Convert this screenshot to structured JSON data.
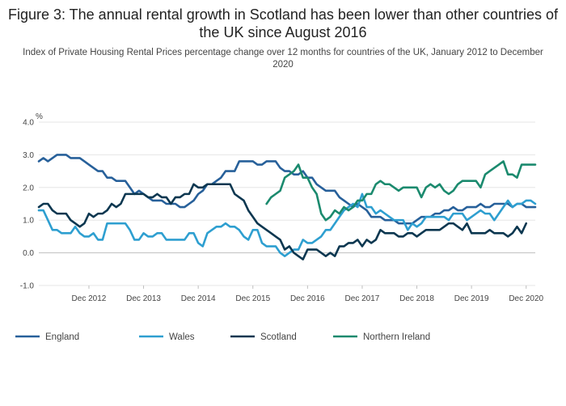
{
  "title": "Figure 3: The annual rental growth in Scotland has been lower than other countries of the UK since August 2016",
  "subtitle": "Index of Private Housing Rental Prices percentage change over 12 months for countries of the UK, January 2012 to December 2020",
  "chart_data": {
    "type": "line",
    "title": "Figure 3: The annual rental growth in Scotland has been lower than other countries of the UK since August 2016",
    "subtitle": "Index of Private Housing Rental Prices percentage change over 12 months for countries of the UK, January 2012 to December 2020",
    "ylabel": "%",
    "xlabel": "",
    "x_start": "Jan 2012",
    "x_end": "Dec 2020",
    "ylim": [
      -1.0,
      4.0
    ],
    "yticks": [
      -1.0,
      0.0,
      1.0,
      2.0,
      3.0,
      4.0
    ],
    "ytick_labels": [
      "-1.0",
      "0.0",
      "1.0",
      "2.0",
      "3.0",
      "4.0"
    ],
    "xtick_labels": [
      "Dec 2012",
      "Dec 2013",
      "Dec 2014",
      "Dec 2015",
      "Dec 2016",
      "Dec 2017",
      "Dec 2018",
      "Dec 2019",
      "Dec 2020"
    ],
    "grid": true,
    "legend": "bottom",
    "series": [
      {
        "name": "England",
        "color": "#27609a",
        "values": [
          2.8,
          2.9,
          2.8,
          2.9,
          3.0,
          3.0,
          3.0,
          2.9,
          2.9,
          2.9,
          2.8,
          2.7,
          2.6,
          2.5,
          2.5,
          2.3,
          2.3,
          2.2,
          2.2,
          2.2,
          2.0,
          1.8,
          1.9,
          1.8,
          1.7,
          1.6,
          1.6,
          1.6,
          1.5,
          1.5,
          1.5,
          1.4,
          1.4,
          1.5,
          1.6,
          1.8,
          1.9,
          2.1,
          2.1,
          2.2,
          2.3,
          2.5,
          2.5,
          2.5,
          2.8,
          2.8,
          2.8,
          2.8,
          2.7,
          2.7,
          2.8,
          2.8,
          2.8,
          2.6,
          2.5,
          2.5,
          2.4,
          2.4,
          2.5,
          2.3,
          2.3,
          2.1,
          2.0,
          1.9,
          1.9,
          1.9,
          1.7,
          1.6,
          1.5,
          1.4,
          1.5,
          1.4,
          1.3,
          1.1,
          1.1,
          1.1,
          1.0,
          1.0,
          1.0,
          0.9,
          0.9,
          0.9,
          0.9,
          1.0,
          1.1,
          1.1,
          1.1,
          1.2,
          1.2,
          1.3,
          1.3,
          1.4,
          1.3,
          1.3,
          1.4,
          1.4,
          1.4,
          1.5,
          1.4,
          1.4,
          1.5,
          1.5,
          1.5,
          1.5,
          1.4,
          1.5,
          1.5,
          1.4,
          1.4,
          1.4
        ]
      },
      {
        "name": "Wales",
        "color": "#2e9fd0",
        "values": [
          1.3,
          1.3,
          1.0,
          0.7,
          0.7,
          0.6,
          0.6,
          0.6,
          0.8,
          0.6,
          0.5,
          0.5,
          0.6,
          0.4,
          0.4,
          0.9,
          0.9,
          0.9,
          0.9,
          0.9,
          0.7,
          0.4,
          0.4,
          0.6,
          0.5,
          0.5,
          0.6,
          0.6,
          0.4,
          0.4,
          0.4,
          0.4,
          0.4,
          0.6,
          0.6,
          0.3,
          0.2,
          0.6,
          0.7,
          0.8,
          0.8,
          0.9,
          0.8,
          0.8,
          0.7,
          0.5,
          0.4,
          0.7,
          0.7,
          0.3,
          0.2,
          0.2,
          0.2,
          0.0,
          -0.1,
          0.0,
          0.1,
          0.1,
          0.4,
          0.3,
          0.3,
          0.4,
          0.5,
          0.7,
          0.7,
          0.9,
          1.1,
          1.3,
          1.4,
          1.5,
          1.4,
          1.8,
          1.4,
          1.4,
          1.2,
          1.3,
          1.2,
          1.1,
          1.0,
          1.0,
          1.0,
          0.7,
          0.9,
          0.8,
          0.9,
          1.1,
          1.1,
          1.1,
          1.1,
          1.1,
          1.0,
          1.2,
          1.2,
          1.2,
          1.0,
          1.1,
          1.2,
          1.3,
          1.2,
          1.2,
          1.0,
          1.2,
          1.4,
          1.6,
          1.4,
          1.5,
          1.5,
          1.6,
          1.6,
          1.5
        ]
      },
      {
        "name": "Scotland",
        "color": "#0c3750",
        "values": [
          1.4,
          1.5,
          1.5,
          1.3,
          1.2,
          1.2,
          1.2,
          1.0,
          0.9,
          0.8,
          0.9,
          1.2,
          1.1,
          1.2,
          1.2,
          1.3,
          1.5,
          1.4,
          1.5,
          1.8,
          1.8,
          1.8,
          1.8,
          1.8,
          1.7,
          1.7,
          1.8,
          1.7,
          1.7,
          1.5,
          1.7,
          1.7,
          1.8,
          1.8,
          2.1,
          2.0,
          2.0,
          2.1,
          2.1,
          2.1,
          2.1,
          2.1,
          2.1,
          1.8,
          1.7,
          1.6,
          1.3,
          1.1,
          0.9,
          0.8,
          0.7,
          0.6,
          0.5,
          0.4,
          0.1,
          0.2,
          0.0,
          -0.1,
          -0.2,
          0.1,
          0.1,
          0.1,
          0.0,
          -0.1,
          0.0,
          -0.1,
          0.2,
          0.2,
          0.3,
          0.3,
          0.4,
          0.2,
          0.4,
          0.3,
          0.4,
          0.7,
          0.6,
          0.6,
          0.6,
          0.5,
          0.5,
          0.6,
          0.6,
          0.5,
          0.6,
          0.7,
          0.7,
          0.7,
          0.7,
          0.8,
          0.9,
          0.9,
          0.8,
          0.7,
          0.9,
          0.6,
          0.6,
          0.6,
          0.6,
          0.7,
          0.6,
          0.6,
          0.6,
          0.5,
          0.6,
          0.8,
          0.6,
          0.9
        ]
      },
      {
        "name": "Northern Ireland",
        "color": "#1b8a6e",
        "values": [
          null,
          null,
          null,
          null,
          null,
          null,
          null,
          null,
          null,
          null,
          null,
          null,
          null,
          null,
          null,
          null,
          null,
          null,
          null,
          null,
          null,
          null,
          null,
          null,
          null,
          null,
          null,
          null,
          null,
          null,
          null,
          null,
          null,
          null,
          null,
          null,
          null,
          null,
          null,
          null,
          null,
          null,
          null,
          null,
          null,
          null,
          null,
          null,
          null,
          null,
          1.5,
          1.7,
          1.8,
          1.9,
          2.3,
          2.4,
          2.5,
          2.7,
          2.3,
          2.3,
          2.0,
          1.8,
          1.2,
          1.0,
          1.1,
          1.3,
          1.2,
          1.4,
          1.3,
          1.4,
          1.6,
          1.6,
          1.8,
          1.8,
          2.1,
          2.2,
          2.1,
          2.1,
          2.0,
          1.9,
          2.0,
          2.0,
          2.0,
          2.0,
          1.7,
          2.0,
          2.1,
          2.0,
          2.1,
          1.9,
          1.8,
          1.9,
          2.1,
          2.2,
          2.2,
          2.2,
          2.2,
          2.0,
          2.4,
          2.5,
          2.6,
          2.7,
          2.8,
          2.4,
          2.4,
          2.3,
          2.7,
          2.7,
          2.7,
          2.7
        ]
      }
    ]
  }
}
